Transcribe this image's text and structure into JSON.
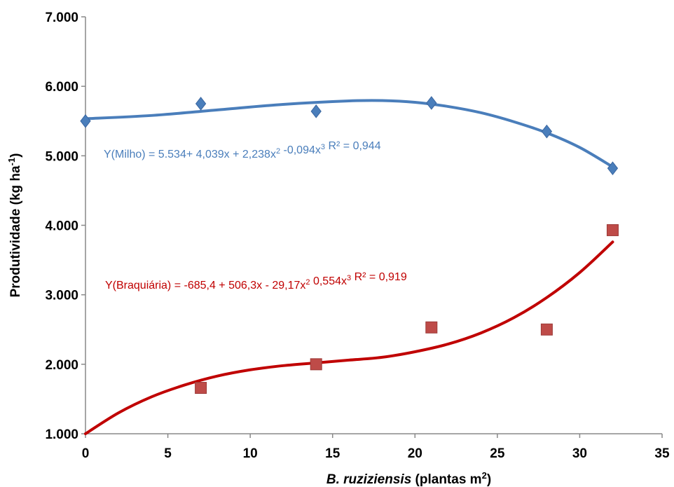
{
  "chart_data": {
    "type": "scatter",
    "xlabel": {
      "italic": "B. ruziziensis",
      "normal": " (plantas m",
      "sup": "2",
      "end": ")"
    },
    "ylabel": {
      "base": "Produtividade (kg ha",
      "sup": "-1",
      "end": ")"
    },
    "xlim": [
      0,
      35
    ],
    "ylim": [
      1000,
      7000
    ],
    "x_ticks": [
      0,
      5,
      10,
      15,
      20,
      25,
      30,
      35
    ],
    "x_tick_labels": [
      "0",
      "5",
      "10",
      "15",
      "20",
      "25",
      "30",
      "35"
    ],
    "y_ticks": [
      1000,
      2000,
      3000,
      4000,
      5000,
      6000,
      7000
    ],
    "y_tick_labels": [
      "1.000",
      "2.000",
      "3.000",
      "4.000",
      "5.000",
      "6.000",
      "7.000"
    ],
    "grid": false,
    "series": [
      {
        "key": "milho",
        "marker": "diamond",
        "color": "#4a7ebb",
        "line_color": "#4a7ebb",
        "points": [
          {
            "x": 0,
            "y": 5500
          },
          {
            "x": 7,
            "y": 5750
          },
          {
            "x": 14,
            "y": 5640
          },
          {
            "x": 21,
            "y": 5760
          },
          {
            "x": 28,
            "y": 5350
          },
          {
            "x": 32,
            "y": 4820
          }
        ],
        "trend": [
          {
            "x": 0,
            "y": 5534
          },
          {
            "x": 4,
            "y": 5580
          },
          {
            "x": 8,
            "y": 5660
          },
          {
            "x": 12,
            "y": 5740
          },
          {
            "x": 16,
            "y": 5790
          },
          {
            "x": 18,
            "y": 5795
          },
          {
            "x": 20,
            "y": 5770
          },
          {
            "x": 22,
            "y": 5710
          },
          {
            "x": 24,
            "y": 5620
          },
          {
            "x": 26,
            "y": 5490
          },
          {
            "x": 28,
            "y": 5330
          },
          {
            "x": 30,
            "y": 5120
          },
          {
            "x": 32,
            "y": 4840
          }
        ],
        "equation": {
          "parts": [
            {
              "t": "Y(Milho) = 5.534+ 4,039x + 2,238x",
              "sup": false
            },
            {
              "t": "2",
              "sup": true
            },
            {
              "t": " -0,094x",
              "sup": false
            },
            {
              "t": "3",
              "sup": true
            },
            {
              "t": " R² = 0,944",
              "sup": false
            }
          ]
        }
      },
      {
        "key": "braquiaria",
        "marker": "square",
        "color": "#be4b48",
        "line_color": "#c00000",
        "points": [
          {
            "x": 7,
            "y": 1660
          },
          {
            "x": 14,
            "y": 2000
          },
          {
            "x": 21,
            "y": 2530
          },
          {
            "x": 28,
            "y": 2500
          },
          {
            "x": 32,
            "y": 3930
          }
        ],
        "trend": [
          {
            "x": 0,
            "y": 1000
          },
          {
            "x": 2,
            "y": 1300
          },
          {
            "x": 4,
            "y": 1530
          },
          {
            "x": 6,
            "y": 1700
          },
          {
            "x": 8,
            "y": 1830
          },
          {
            "x": 10,
            "y": 1920
          },
          {
            "x": 12,
            "y": 1980
          },
          {
            "x": 14,
            "y": 2020
          },
          {
            "x": 16,
            "y": 2060
          },
          {
            "x": 18,
            "y": 2100
          },
          {
            "x": 20,
            "y": 2180
          },
          {
            "x": 22,
            "y": 2290
          },
          {
            "x": 24,
            "y": 2450
          },
          {
            "x": 26,
            "y": 2670
          },
          {
            "x": 28,
            "y": 2960
          },
          {
            "x": 30,
            "y": 3320
          },
          {
            "x": 32,
            "y": 3760
          }
        ],
        "equation": {
          "parts": [
            {
              "t": "Y(Braquiária) = -685,4 + 506,3x - 29,17x",
              "sup": false
            },
            {
              "t": "2",
              "sup": true
            },
            {
              "t": " 0,554x",
              "sup": false
            },
            {
              "t": "3",
              "sup": true
            },
            {
              "t": "  R² = 0,919",
              "sup": false
            }
          ]
        }
      }
    ]
  }
}
